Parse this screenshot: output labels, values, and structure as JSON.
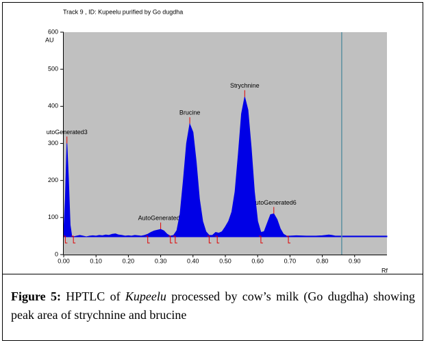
{
  "chart_data": {
    "type": "area",
    "title": "Track  9 , ID: Kupeelu purified by Go dugdha",
    "y_label": "AU",
    "x_label": "Rf",
    "x": [
      0,
      0.005,
      0.01,
      0.015,
      0.02,
      0.025,
      0.03,
      0.04,
      0.05,
      0.06,
      0.07,
      0.08,
      0.09,
      0.1,
      0.11,
      0.12,
      0.13,
      0.14,
      0.15,
      0.16,
      0.17,
      0.18,
      0.19,
      0.2,
      0.21,
      0.22,
      0.23,
      0.24,
      0.25,
      0.26,
      0.27,
      0.28,
      0.29,
      0.3,
      0.31,
      0.32,
      0.33,
      0.34,
      0.35,
      0.36,
      0.37,
      0.38,
      0.39,
      0.4,
      0.41,
      0.42,
      0.43,
      0.44,
      0.45,
      0.46,
      0.47,
      0.48,
      0.49,
      0.5,
      0.51,
      0.52,
      0.53,
      0.54,
      0.55,
      0.56,
      0.57,
      0.58,
      0.59,
      0.6,
      0.61,
      0.62,
      0.63,
      0.64,
      0.65,
      0.66,
      0.67,
      0.68,
      0.69,
      0.7,
      0.72,
      0.75,
      0.78,
      0.8,
      0.81,
      0.82,
      0.83,
      0.84,
      0.86,
      0.9,
      0.95,
      1.0
    ],
    "series": [
      {
        "color": "#0000e6",
        "values": [
          60,
          150,
          300,
          200,
          80,
          50,
          48,
          50,
          52,
          50,
          48,
          50,
          51,
          50,
          52,
          51,
          53,
          52,
          55,
          56,
          53,
          52,
          50,
          51,
          50,
          52,
          51,
          50,
          52,
          55,
          60,
          64,
          66,
          68,
          64,
          55,
          50,
          52,
          65,
          110,
          200,
          300,
          352,
          330,
          250,
          150,
          90,
          62,
          52,
          52,
          60,
          58,
          62,
          75,
          90,
          115,
          170,
          270,
          380,
          425,
          390,
          290,
          170,
          90,
          60,
          62,
          85,
          108,
          110,
          95,
          70,
          55,
          50,
          50,
          51,
          50,
          50,
          51,
          52,
          53,
          52,
          50,
          50,
          50,
          50,
          50
        ]
      }
    ],
    "fill_baseline": 48,
    "xlim": [
      0,
      1.0
    ],
    "ylim": [
      0,
      600
    ],
    "yticks": [
      0,
      100,
      200,
      300,
      400,
      500,
      600
    ],
    "xticks": [
      {
        "value": 0,
        "label": "0.00"
      },
      {
        "value": 0.1,
        "label": "0.10"
      },
      {
        "value": 0.2,
        "label": "0.20"
      },
      {
        "value": 0.3,
        "label": "0.30"
      },
      {
        "value": 0.4,
        "label": "0.40"
      },
      {
        "value": 0.5,
        "label": "0.50"
      },
      {
        "value": 0.6,
        "label": "0.60"
      },
      {
        "value": 0.7,
        "label": "0.70"
      },
      {
        "value": 0.8,
        "label": "0.80"
      },
      {
        "value": 0.9,
        "label": "0.90"
      }
    ],
    "peaks": [
      {
        "text": "utoGenerated3",
        "x": 0.01,
        "y": 300
      },
      {
        "text": "AutoGenerated4",
        "x": 0.3,
        "y": 68
      },
      {
        "text": "Brucine",
        "x": 0.39,
        "y": 352
      },
      {
        "text": "Strychnine",
        "x": 0.56,
        "y": 425
      },
      {
        "text": "AutoGenerated6",
        "x": 0.65,
        "y": 110
      }
    ],
    "peak_boundaries": [
      0.005,
      0.03,
      0.26,
      0.33,
      0.345,
      0.45,
      0.475,
      0.61,
      0.695
    ],
    "marker_x": 0.86,
    "marker_color": "#5a8fa0",
    "background": "#c0c0c0"
  },
  "caption": {
    "label": "Figure 5:",
    "before": " HPTLC of ",
    "emphasis": "Kupeelu",
    "after": " processed by cow’s milk (Go dugdha) showing peak area of strychnine and brucine"
  }
}
